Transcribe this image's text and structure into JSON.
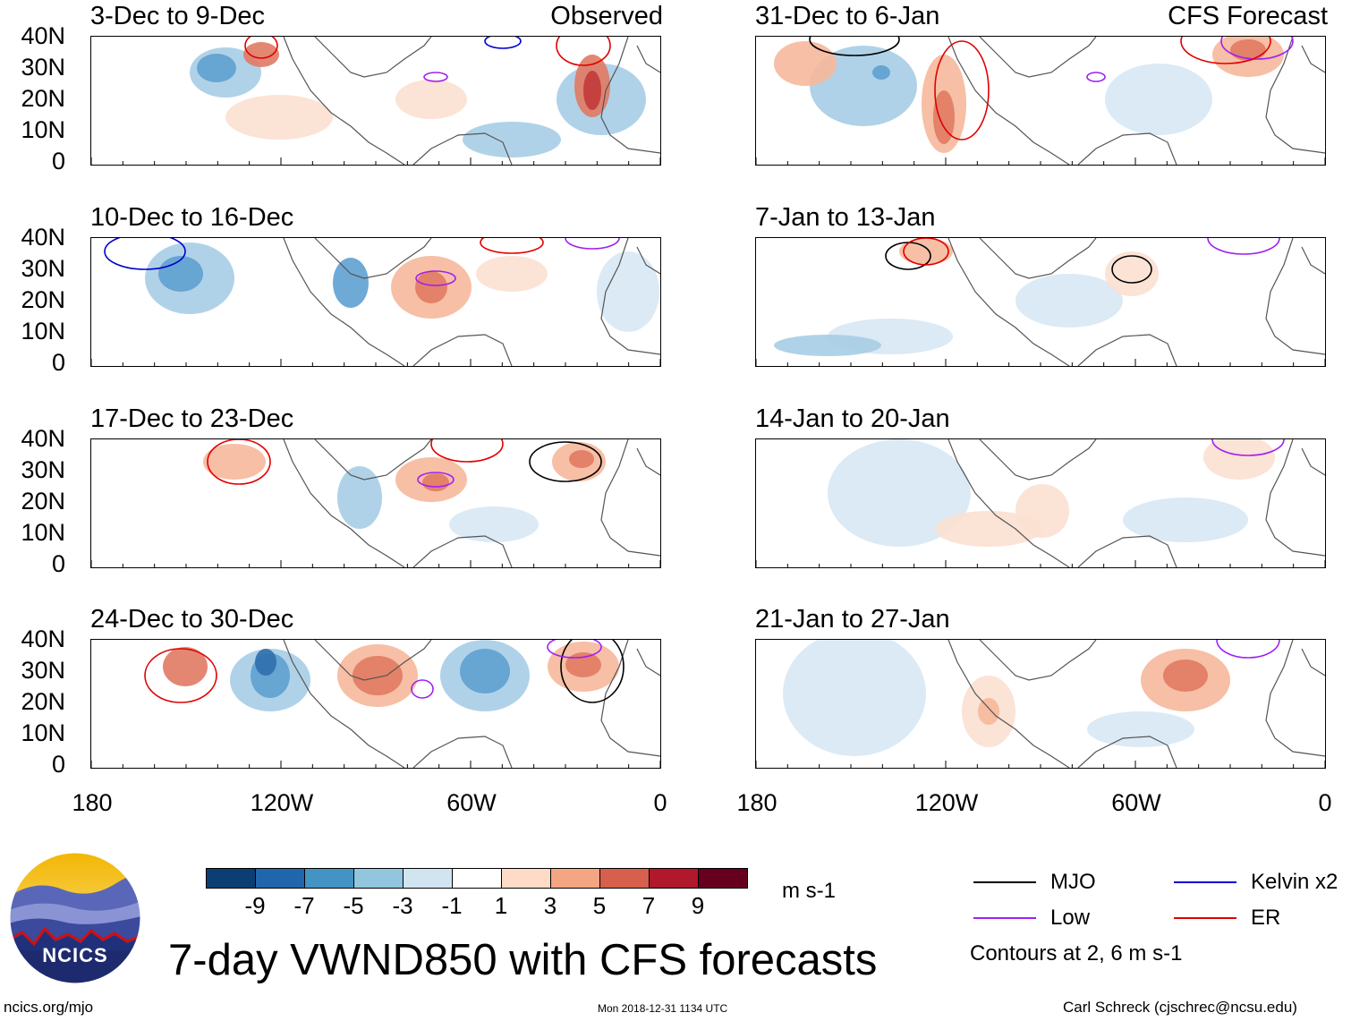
{
  "observed_label": "Observed",
  "forecast_label": "CFS Forecast",
  "observed_panels": [
    {
      "title": "3-Dec to 9-Dec"
    },
    {
      "title": "10-Dec to 16-Dec"
    },
    {
      "title": "17-Dec to 23-Dec"
    },
    {
      "title": "24-Dec to 30-Dec"
    }
  ],
  "forecast_panels": [
    {
      "title": "31-Dec to 6-Jan"
    },
    {
      "title": "7-Jan to 13-Jan"
    },
    {
      "title": "14-Jan to 20-Jan"
    },
    {
      "title": "21-Jan to 27-Jan"
    }
  ],
  "lat_ticks": [
    "40N",
    "30N",
    "20N",
    "10N",
    "0"
  ],
  "lon_ticks": [
    "180",
    "120W",
    "60W",
    "0"
  ],
  "colorbar": {
    "labels": [
      "-9",
      "-7",
      "-5",
      "-3",
      "-1",
      "1",
      "3",
      "5",
      "7",
      "9"
    ],
    "colors": [
      "#0b3f74",
      "#2166ac",
      "#4393c3",
      "#92c5de",
      "#d1e5f0",
      "#ffffff",
      "#fddbc7",
      "#f4a582",
      "#d6604d",
      "#b2182b",
      "#67001f"
    ],
    "units": "m s-1"
  },
  "legend": {
    "mjo": "MJO",
    "low": "Low",
    "kelvin": "Kelvin x2",
    "er": "ER",
    "contour_note": "Contours at 2, 6 m s-1",
    "colors": {
      "mjo": "#000000",
      "low": "#a020f0",
      "kelvin": "#0000cd",
      "er": "#e00000"
    }
  },
  "title": "7-day VWND850 with CFS forecasts",
  "logo_text": "NCICS",
  "footer": {
    "url": "ncics.org/mjo",
    "timestamp": "Mon 2018-12-31 1134 UTC",
    "author": "Carl Schreck (cjschrec@ncsu.edu)"
  }
}
